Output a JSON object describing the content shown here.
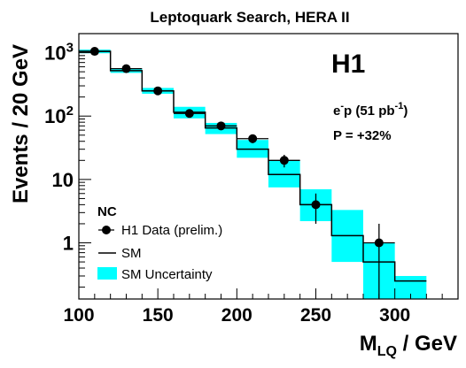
{
  "chart_data": {
    "type": "histogram",
    "title": "Leptoquark Search, HERA II",
    "ylabel": "Events / 20 GeV",
    "xlabel_main": "M",
    "xlabel_sub": "LQ",
    "xlabel_unit": " / GeV",
    "xlim": [
      100,
      340
    ],
    "ylim": [
      0.13,
      2000
    ],
    "yscale": "log",
    "x_ticks": [
      100,
      150,
      200,
      250,
      300
    ],
    "y_ticks": [
      {
        "value": 1,
        "base": "1",
        "exp": ""
      },
      {
        "value": 10,
        "base": "10",
        "exp": ""
      },
      {
        "value": 100,
        "base": "10",
        "exp": "2"
      },
      {
        "value": 1000,
        "base": "10",
        "exp": "3"
      }
    ],
    "experiment_label": "H1",
    "beam_label": {
      "part1": "e",
      "sup1": "-",
      "part2": "p (51 pb",
      "sup2": "-1",
      "part3": ")"
    },
    "polarization_label": "P = +32%",
    "legend": {
      "title": "NC",
      "data_label": "H1 Data (prelim.)",
      "sm_label": "SM",
      "unc_label": "SM Uncertainty",
      "placement": "bottom-left"
    },
    "bins": [
      {
        "lo": 100,
        "hi": 120,
        "sm": 1050,
        "unc_lo": 980,
        "unc_hi": 1120
      },
      {
        "lo": 120,
        "hi": 140,
        "sm": 520,
        "unc_lo": 480,
        "unc_hi": 565
      },
      {
        "lo": 140,
        "hi": 160,
        "sm": 250,
        "unc_lo": 225,
        "unc_hi": 278
      },
      {
        "lo": 160,
        "hi": 180,
        "sm": 115,
        "unc_lo": 92,
        "unc_hi": 140
      },
      {
        "lo": 180,
        "hi": 200,
        "sm": 65,
        "unc_lo": 52,
        "unc_hi": 78
      },
      {
        "lo": 200,
        "hi": 220,
        "sm": 30,
        "unc_lo": 22,
        "unc_hi": 42
      },
      {
        "lo": 220,
        "hi": 240,
        "sm": 12,
        "unc_lo": 7.5,
        "unc_hi": 20
      },
      {
        "lo": 240,
        "hi": 260,
        "sm": 4.0,
        "unc_lo": 2.2,
        "unc_hi": 7.0
      },
      {
        "lo": 260,
        "hi": 280,
        "sm": 1.3,
        "unc_lo": 0.5,
        "unc_hi": 3.3
      },
      {
        "lo": 280,
        "hi": 300,
        "sm": 0.5,
        "unc_lo": 0.13,
        "unc_hi": 1.0
      },
      {
        "lo": 300,
        "hi": 320,
        "sm": 0.25,
        "unc_lo": 0.13,
        "unc_hi": 0.3
      }
    ],
    "data_points": [
      {
        "x": 110,
        "y": 1050,
        "err_lo": 32,
        "err_hi": 32
      },
      {
        "x": 130,
        "y": 560,
        "err_lo": 24,
        "err_hi": 24
      },
      {
        "x": 150,
        "y": 250,
        "err_lo": 16,
        "err_hi": 16
      },
      {
        "x": 170,
        "y": 110,
        "err_lo": 11,
        "err_hi": 11
      },
      {
        "x": 190,
        "y": 70,
        "err_lo": 8.4,
        "err_hi": 8.4
      },
      {
        "x": 210,
        "y": 44,
        "err_lo": 6.6,
        "err_hi": 6.6
      },
      {
        "x": 230,
        "y": 20,
        "err_lo": 4.5,
        "err_hi": 4.5
      },
      {
        "x": 250,
        "y": 4,
        "err_lo": 2.0,
        "err_hi": 2.0
      },
      {
        "x": 290,
        "y": 1,
        "err_lo": 0.99,
        "err_hi": 1.0
      }
    ]
  }
}
